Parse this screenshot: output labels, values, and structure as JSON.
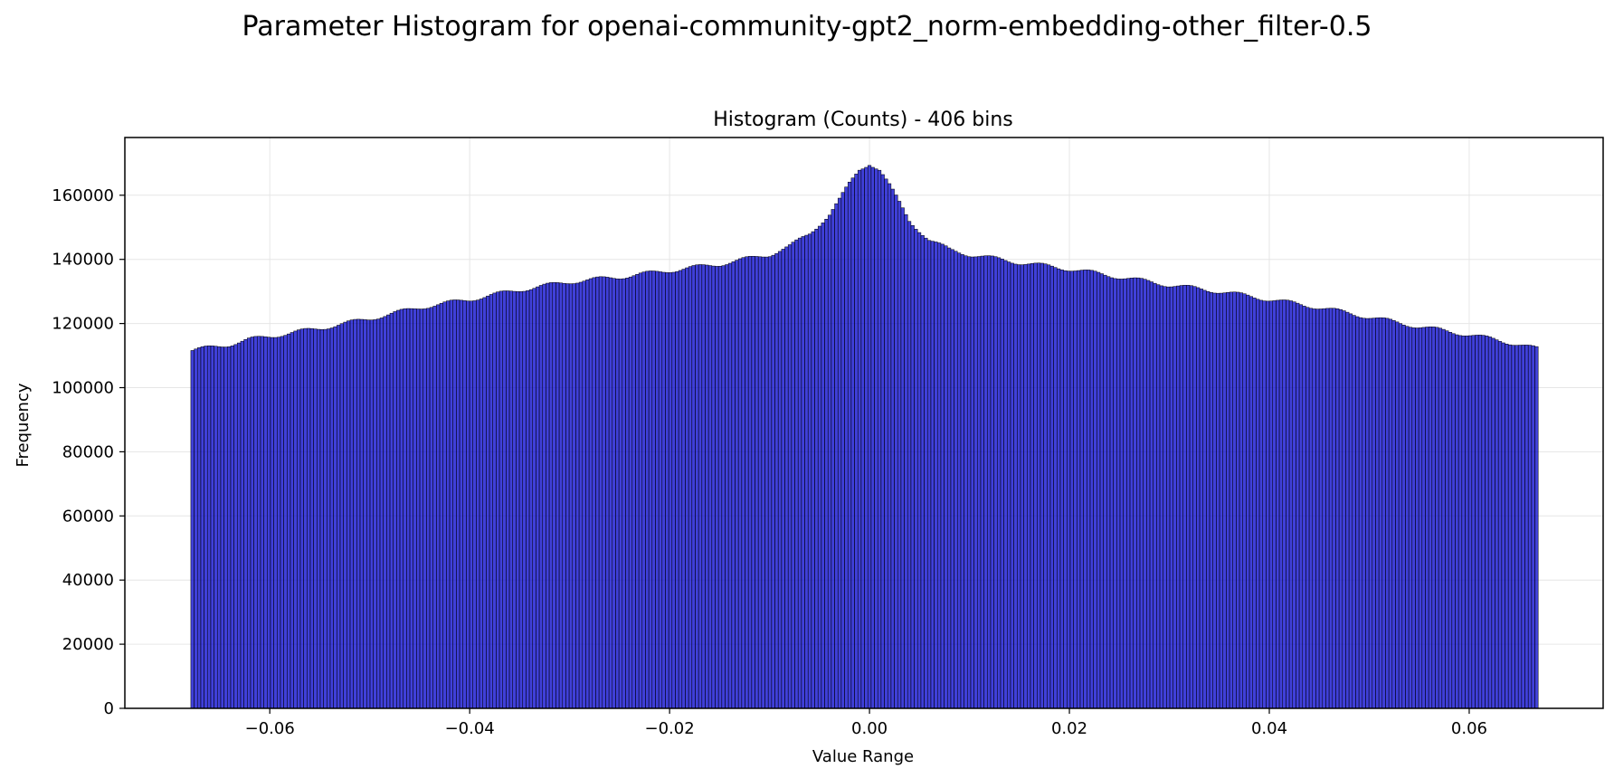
{
  "figure": {
    "suptitle": "Parameter Histogram for openai-community-gpt2_norm-embedding-other_filter-0.5"
  },
  "colors": {
    "bar_fill": "#0000cc",
    "bar_edge": "#000000",
    "grid": "#e6e6e6",
    "axes": "#000000"
  },
  "chart_data": {
    "type": "bar",
    "title": "Histogram (Counts) - 406 bins",
    "xlabel": "Value Range",
    "ylabel": "Frequency",
    "bins": 406,
    "bin_range": [
      -0.0679,
      0.0669
    ],
    "xlim": [
      -0.0745,
      0.0734
    ],
    "ylim": [
      0,
      178000
    ],
    "xticks": [
      -0.06,
      -0.04,
      -0.02,
      0.0,
      0.02,
      0.04,
      0.06
    ],
    "xtick_labels": [
      "−0.06",
      "−0.04",
      "−0.02",
      "0.00",
      "0.02",
      "0.04",
      "0.06"
    ],
    "yticks": [
      0,
      20000,
      40000,
      60000,
      80000,
      100000,
      120000,
      140000,
      160000
    ],
    "ytick_labels": [
      "0",
      "20000",
      "40000",
      "60000",
      "80000",
      "100000",
      "120000",
      "140000",
      "160000"
    ],
    "grid": true,
    "profile": {
      "description_of_values": "approximate bin counts read at bin-center positions; intermediate bins follow these anchors",
      "x": [
        -0.0679,
        -0.066,
        -0.064,
        -0.062,
        -0.06,
        -0.055,
        -0.05,
        -0.045,
        -0.04,
        -0.035,
        -0.03,
        -0.025,
        -0.02,
        -0.015,
        -0.01,
        -0.008,
        -0.006,
        -0.004,
        -0.003,
        -0.002,
        -0.001,
        0.0,
        0.001,
        0.002,
        0.003,
        0.004,
        0.006,
        0.008,
        0.01,
        0.015,
        0.02,
        0.025,
        0.03,
        0.035,
        0.04,
        0.045,
        0.05,
        0.055,
        0.06,
        0.065,
        0.0669
      ],
      "y": [
        111500,
        112500,
        113500,
        115000,
        116000,
        118500,
        121500,
        125000,
        127500,
        130500,
        133000,
        134500,
        136500,
        138500,
        141500,
        144000,
        148000,
        154000,
        158500,
        163500,
        168000,
        170000,
        168000,
        163000,
        157500,
        152000,
        146000,
        143000,
        141500,
        139000,
        137000,
        134500,
        132000,
        130000,
        127500,
        125000,
        122000,
        119000,
        116500,
        113500,
        112000
      ]
    }
  }
}
